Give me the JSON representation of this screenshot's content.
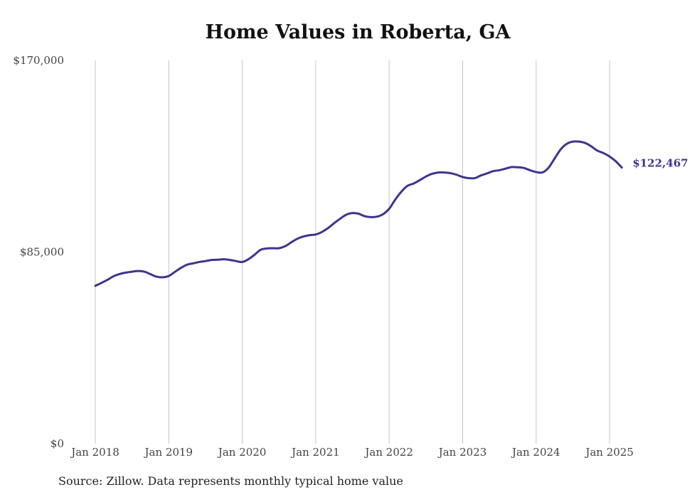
{
  "chart_data": {
    "type": "line",
    "title": "Home Values in Roberta, GA",
    "ylim": [
      0,
      170000
    ],
    "y_ticks": [
      0,
      85000,
      170000
    ],
    "y_tick_labels": [
      "$0",
      "$85,000",
      "$170,000"
    ],
    "x_ticks": [
      "2018-01",
      "2019-01",
      "2020-01",
      "2021-01",
      "2022-01",
      "2023-01",
      "2024-01",
      "2025-01"
    ],
    "x_tick_labels": [
      "Jan 2018",
      "Jan 2019",
      "Jan 2020",
      "Jan 2021",
      "Jan 2022",
      "Jan 2023",
      "Jan 2024",
      "Jan 2025"
    ],
    "xlim": [
      "2018-01",
      "2025-03"
    ],
    "grid": "vertical",
    "line_color": "#3d3590",
    "series": [
      {
        "values": [
          {
            "x": "2018-01",
            "y": 70000
          },
          {
            "x": "2018-02",
            "y": 71300
          },
          {
            "x": "2018-03",
            "y": 72700
          },
          {
            "x": "2018-04",
            "y": 74300
          },
          {
            "x": "2018-05",
            "y": 75300
          },
          {
            "x": "2018-06",
            "y": 75900
          },
          {
            "x": "2018-07",
            "y": 76300
          },
          {
            "x": "2018-08",
            "y": 76600
          },
          {
            "x": "2018-09",
            "y": 76300
          },
          {
            "x": "2018-10",
            "y": 75200
          },
          {
            "x": "2018-11",
            "y": 74100
          },
          {
            "x": "2018-12",
            "y": 73800
          },
          {
            "x": "2019-01",
            "y": 74400
          },
          {
            "x": "2019-02",
            "y": 76200
          },
          {
            "x": "2019-03",
            "y": 78000
          },
          {
            "x": "2019-04",
            "y": 79400
          },
          {
            "x": "2019-05",
            "y": 80000
          },
          {
            "x": "2019-06",
            "y": 80600
          },
          {
            "x": "2019-07",
            "y": 81000
          },
          {
            "x": "2019-08",
            "y": 81500
          },
          {
            "x": "2019-09",
            "y": 81600
          },
          {
            "x": "2019-10",
            "y": 81800
          },
          {
            "x": "2019-11",
            "y": 81500
          },
          {
            "x": "2019-12",
            "y": 81000
          },
          {
            "x": "2020-01",
            "y": 80600
          },
          {
            "x": "2020-02",
            "y": 81800
          },
          {
            "x": "2020-03",
            "y": 83800
          },
          {
            "x": "2020-04",
            "y": 86000
          },
          {
            "x": "2020-05",
            "y": 86600
          },
          {
            "x": "2020-06",
            "y": 86700
          },
          {
            "x": "2020-07",
            "y": 86700
          },
          {
            "x": "2020-08",
            "y": 87600
          },
          {
            "x": "2020-09",
            "y": 89300
          },
          {
            "x": "2020-10",
            "y": 90900
          },
          {
            "x": "2020-11",
            "y": 91900
          },
          {
            "x": "2020-12",
            "y": 92500
          },
          {
            "x": "2021-01",
            "y": 92800
          },
          {
            "x": "2021-02",
            "y": 93900
          },
          {
            "x": "2021-03",
            "y": 95600
          },
          {
            "x": "2021-04",
            "y": 97800
          },
          {
            "x": "2021-05",
            "y": 99800
          },
          {
            "x": "2021-06",
            "y": 101600
          },
          {
            "x": "2021-07",
            "y": 102300
          },
          {
            "x": "2021-08",
            "y": 102000
          },
          {
            "x": "2021-09",
            "y": 100900
          },
          {
            "x": "2021-10",
            "y": 100500
          },
          {
            "x": "2021-11",
            "y": 100700
          },
          {
            "x": "2021-12",
            "y": 101800
          },
          {
            "x": "2022-01",
            "y": 104200
          },
          {
            "x": "2022-02",
            "y": 108300
          },
          {
            "x": "2022-03",
            "y": 111800
          },
          {
            "x": "2022-04",
            "y": 114400
          },
          {
            "x": "2022-05",
            "y": 115400
          },
          {
            "x": "2022-06",
            "y": 116900
          },
          {
            "x": "2022-07",
            "y": 118500
          },
          {
            "x": "2022-08",
            "y": 119700
          },
          {
            "x": "2022-09",
            "y": 120300
          },
          {
            "x": "2022-10",
            "y": 120300
          },
          {
            "x": "2022-11",
            "y": 120000
          },
          {
            "x": "2022-12",
            "y": 119300
          },
          {
            "x": "2023-01",
            "y": 118300
          },
          {
            "x": "2023-02",
            "y": 117800
          },
          {
            "x": "2023-03",
            "y": 117800
          },
          {
            "x": "2023-04",
            "y": 119000
          },
          {
            "x": "2023-05",
            "y": 119900
          },
          {
            "x": "2023-06",
            "y": 120900
          },
          {
            "x": "2023-07",
            "y": 121300
          },
          {
            "x": "2023-08",
            "y": 122000
          },
          {
            "x": "2023-09",
            "y": 122700
          },
          {
            "x": "2023-10",
            "y": 122600
          },
          {
            "x": "2023-11",
            "y": 122300
          },
          {
            "x": "2023-12",
            "y": 121300
          },
          {
            "x": "2024-01",
            "y": 120500
          },
          {
            "x": "2024-02",
            "y": 120300
          },
          {
            "x": "2024-03",
            "y": 122300
          },
          {
            "x": "2024-04",
            "y": 126400
          },
          {
            "x": "2024-05",
            "y": 130500
          },
          {
            "x": "2024-06",
            "y": 133000
          },
          {
            "x": "2024-07",
            "y": 134000
          },
          {
            "x": "2024-08",
            "y": 134000
          },
          {
            "x": "2024-09",
            "y": 133400
          },
          {
            "x": "2024-10",
            "y": 131900
          },
          {
            "x": "2024-11",
            "y": 130000
          },
          {
            "x": "2024-12",
            "y": 128900
          },
          {
            "x": "2025-01",
            "y": 127400
          },
          {
            "x": "2025-02",
            "y": 125300
          },
          {
            "x": "2025-03",
            "y": 122467
          }
        ]
      }
    ],
    "end_label": "$122,467",
    "source": "Source: Zillow. Data represents monthly typical home value"
  }
}
